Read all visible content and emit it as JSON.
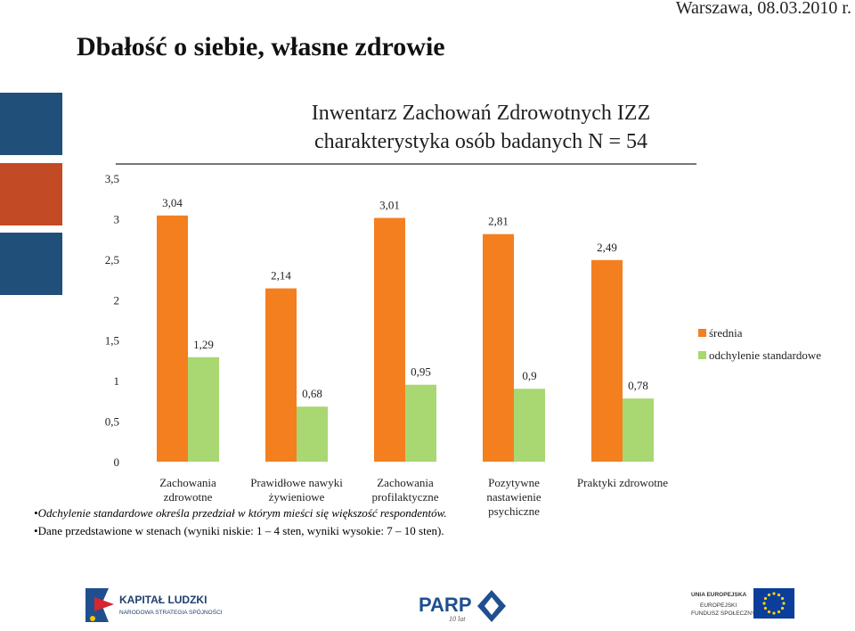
{
  "header": {
    "date": "Warszawa, 08.03.2010 r.",
    "title": "Dbałość o siebie, własne zdrowie"
  },
  "decor_colors": [
    "#204f7a",
    "#c24a24",
    "#204f7a"
  ],
  "chart_data": {
    "type": "bar",
    "title": "Inwentarz Zachowań Zdrowotnych IZZ",
    "subtitle": "charakterystyka osób badanych N = 54",
    "categories": [
      [
        "Zachowania",
        "zdrowotne"
      ],
      [
        "Prawidłowe nawyki",
        "żywieniowe"
      ],
      [
        "Zachowania",
        "profilaktyczne"
      ],
      [
        "Pozytywne",
        "nastawienie",
        "psychiczne"
      ],
      [
        "Praktyki zdrowotne"
      ]
    ],
    "series": [
      {
        "name": "średnia",
        "color": "#f47f1f",
        "values": [
          3.04,
          2.14,
          3.01,
          2.81,
          2.49
        ],
        "labels": [
          "3,04",
          "2,14",
          "3,01",
          "2,81",
          "2,49"
        ]
      },
      {
        "name": "odchylenie standardowe",
        "color": "#a9d772",
        "values": [
          1.29,
          0.68,
          0.95,
          0.9,
          0.78
        ],
        "labels": [
          "1,29",
          "0,68",
          "0,95",
          "0,9",
          "0,78"
        ]
      }
    ],
    "ylim": [
      0,
      3.5
    ],
    "yticks": [
      "0",
      "0,5",
      "1",
      "1,5",
      "2",
      "2,5",
      "3",
      "3,5"
    ],
    "grid": false,
    "legend_position": "right"
  },
  "notes": [
    "Odchylenie standardowe określa przedział w którym mieści się większość respondentów.",
    "Dane przedstawione w stenach (wyniki niskie: 1 – 4 sten, wyniki wysokie: 7 – 10 sten)."
  ],
  "logos": {
    "kl_name": "KAPITAŁ LUDZKI",
    "kl_sub": "NARODOWA STRATEGIA SPÓJNOŚCI",
    "parp": "PARP",
    "parp_sub": "10 lat",
    "ue_1": "UNIA EUROPEJSKA",
    "ue_2": "EUROPEJSKI",
    "ue_3": "FUNDUSZ SPOŁECZNY"
  }
}
